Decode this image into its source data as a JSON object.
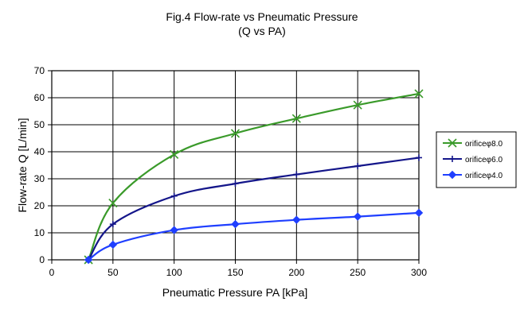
{
  "chart_data": {
    "type": "line",
    "title": "Fig.4 Flow-rate vs Pneumatic Pressure",
    "subtitle": "(Q vs PA)",
    "xlabel": "Pneumatic Pressure PA [kPa]",
    "ylabel": "Flow-rate Q [L/min]",
    "xlim": [
      0,
      300
    ],
    "ylim": [
      0,
      70
    ],
    "xticks": [
      0,
      50,
      100,
      150,
      200,
      250,
      300
    ],
    "yticks": [
      0,
      10,
      20,
      30,
      40,
      50,
      60,
      70
    ],
    "grid": true,
    "legend_position": "right",
    "series": [
      {
        "name": "orificeφ8.0",
        "color": "#3a9a2a",
        "marker": "x",
        "x": [
          30,
          50,
          100,
          150,
          200,
          250,
          300
        ],
        "y": [
          0,
          21,
          39,
          46.8,
          52.3,
          57.3,
          61.5
        ]
      },
      {
        "name": "orificeφ6.0",
        "color": "#14168a",
        "marker": "plus",
        "x": [
          30,
          50,
          100,
          150,
          200,
          250,
          300
        ],
        "y": [
          0,
          13.2,
          23.6,
          28.2,
          31.6,
          34.7,
          37.8
        ]
      },
      {
        "name": "orificeφ4.0",
        "color": "#1f3fff",
        "marker": "diamond",
        "x": [
          30,
          50,
          100,
          150,
          200,
          250,
          300
        ],
        "y": [
          0,
          5.6,
          11,
          13.2,
          14.8,
          16,
          17.4
        ]
      }
    ]
  }
}
